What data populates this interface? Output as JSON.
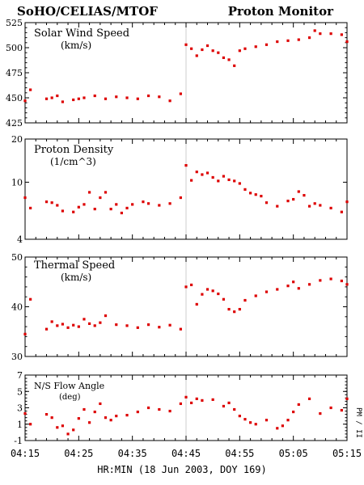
{
  "header": {
    "left": "SoHO/CELIAS/MTOF",
    "right": "Proton Monitor"
  },
  "xaxis_label": "HR:MIN (18 Jun 2003, DOY 169)",
  "side_label": "PM / II",
  "chart_data": [
    {
      "type": "scatter",
      "title": "Solar Wind Speed",
      "unit": "(km/s)",
      "ylim": [
        425,
        525
      ],
      "yticks": [
        425,
        450,
        475,
        500,
        525
      ],
      "xlim": [
        "04:15",
        "05:15"
      ],
      "xticks": [
        "04:15",
        "04:25",
        "04:35",
        "04:45",
        "04:55",
        "05:05",
        "05:15"
      ],
      "marker_color": "#dd0000",
      "vertical_marker": "04:45",
      "x": [
        "04:15",
        "04:16",
        "04:19",
        "04:20",
        "04:21",
        "04:22",
        "04:24",
        "04:25",
        "04:26",
        "04:28",
        "04:30",
        "04:32",
        "04:34",
        "04:36",
        "04:38",
        "04:40",
        "04:42",
        "04:44",
        "04:45",
        "04:46",
        "04:47",
        "04:48",
        "04:49",
        "04:50",
        "04:51",
        "04:52",
        "04:53",
        "04:54",
        "04:55",
        "04:56",
        "04:58",
        "05:00",
        "05:02",
        "05:04",
        "05:06",
        "05:08",
        "05:09",
        "05:10",
        "05:12",
        "05:14",
        "05:15"
      ],
      "values": [
        447,
        458,
        449,
        450,
        452,
        446,
        448,
        449,
        450,
        452,
        449,
        451,
        450,
        449,
        452,
        451,
        447,
        454,
        503,
        499,
        492,
        498,
        502,
        497,
        495,
        490,
        488,
        482,
        497,
        499,
        501,
        503,
        506,
        507,
        508,
        510,
        517,
        514,
        514,
        513,
        506
      ]
    },
    {
      "type": "scatter",
      "title": "Proton Density",
      "unit": "(1/cm^3)",
      "ylim": [
        4,
        20
      ],
      "yticks": [
        4,
        10,
        20
      ],
      "yscale": "log",
      "marker_color": "#dd0000",
      "vertical_marker": "04:45",
      "x": [
        "04:15",
        "04:16",
        "04:19",
        "04:20",
        "04:21",
        "04:22",
        "04:24",
        "04:25",
        "04:26",
        "04:27",
        "04:28",
        "04:29",
        "04:30",
        "04:31",
        "04:32",
        "04:33",
        "04:34",
        "04:35",
        "04:37",
        "04:38",
        "04:40",
        "04:42",
        "04:44",
        "04:45",
        "04:46",
        "04:47",
        "04:48",
        "04:49",
        "04:50",
        "04:51",
        "04:52",
        "04:53",
        "04:54",
        "04:55",
        "04:56",
        "04:57",
        "04:58",
        "04:59",
        "05:00",
        "05:02",
        "05:04",
        "05:05",
        "05:06",
        "05:07",
        "05:08",
        "05:09",
        "05:10",
        "05:12",
        "05:14",
        "05:15"
      ],
      "values": [
        7.8,
        6.6,
        7.3,
        7.2,
        6.9,
        6.3,
        6.2,
        6.7,
        7.0,
        8.5,
        6.5,
        7.8,
        8.5,
        6.5,
        7.0,
        6.1,
        6.6,
        7.0,
        7.3,
        7.1,
        6.9,
        7.1,
        7.8,
        13.1,
        10.3,
        11.8,
        11.3,
        11.6,
        10.8,
        10.2,
        11.0,
        10.4,
        10.2,
        9.8,
        8.9,
        8.4,
        8.2,
        8.0,
        7.2,
        6.8,
        7.4,
        7.6,
        8.6,
        8.1,
        6.8,
        7.1,
        6.9,
        6.6,
        6.2,
        7.3
      ]
    },
    {
      "type": "scatter",
      "title": "Thermal Speed",
      "unit": "(km/s)",
      "ylim": [
        30,
        50
      ],
      "yticks": [
        30,
        40,
        50
      ],
      "marker_color": "#dd0000",
      "vertical_marker": "04:45",
      "x": [
        "04:15",
        "04:16",
        "04:19",
        "04:20",
        "04:21",
        "04:22",
        "04:23",
        "04:24",
        "04:25",
        "04:26",
        "04:27",
        "04:28",
        "04:29",
        "04:30",
        "04:32",
        "04:34",
        "04:36",
        "04:38",
        "04:40",
        "04:42",
        "04:44",
        "04:45",
        "04:46",
        "04:47",
        "04:48",
        "04:49",
        "04:50",
        "04:51",
        "04:52",
        "04:53",
        "04:54",
        "04:55",
        "04:56",
        "04:58",
        "05:00",
        "05:02",
        "05:04",
        "05:05",
        "05:06",
        "05:08",
        "05:10",
        "05:12",
        "05:14",
        "05:15"
      ],
      "values": [
        34.5,
        41.5,
        35.5,
        37.0,
        36.2,
        36.5,
        35.8,
        36.3,
        36.0,
        37.5,
        36.6,
        36.2,
        36.8,
        38.2,
        36.4,
        36.2,
        35.8,
        36.4,
        35.9,
        36.3,
        35.5,
        44.0,
        44.4,
        40.5,
        42.5,
        43.5,
        43.2,
        42.6,
        41.5,
        39.5,
        39.0,
        39.5,
        41.3,
        42.2,
        43.0,
        43.5,
        44.2,
        45.0,
        43.7,
        44.5,
        45.3,
        45.6,
        45.2,
        44.5
      ]
    },
    {
      "type": "scatter",
      "title": "N/S Flow Angle",
      "unit": "(deg)",
      "ylim": [
        -1,
        7
      ],
      "yticks": [
        -1,
        1,
        3,
        5,
        7
      ],
      "marker_color": "#dd0000",
      "vertical_marker": "04:45",
      "x": [
        "04:15",
        "04:16",
        "04:19",
        "04:20",
        "04:21",
        "04:22",
        "04:23",
        "04:24",
        "04:25",
        "04:26",
        "04:27",
        "04:28",
        "04:29",
        "04:30",
        "04:31",
        "04:32",
        "04:34",
        "04:36",
        "04:38",
        "04:40",
        "04:42",
        "04:44",
        "04:45",
        "04:46",
        "04:47",
        "04:48",
        "04:50",
        "04:52",
        "04:53",
        "04:54",
        "04:55",
        "04:56",
        "04:57",
        "04:58",
        "05:00",
        "05:02",
        "05:03",
        "05:04",
        "05:05",
        "05:06",
        "05:08",
        "05:10",
        "05:12",
        "05:14",
        "05:15"
      ],
      "values": [
        2.3,
        1.0,
        2.2,
        1.8,
        0.6,
        0.8,
        -0.2,
        0.3,
        1.7,
        2.8,
        1.2,
        2.5,
        3.5,
        1.8,
        1.5,
        2.0,
        2.1,
        2.5,
        3.0,
        2.8,
        2.6,
        3.5,
        4.3,
        3.6,
        4.1,
        3.9,
        4.0,
        3.2,
        3.6,
        2.8,
        2.0,
        1.6,
        1.2,
        1.0,
        1.5,
        0.5,
        0.8,
        1.5,
        2.5,
        3.4,
        4.1,
        2.3,
        3.0,
        2.7,
        4.1
      ]
    }
  ]
}
